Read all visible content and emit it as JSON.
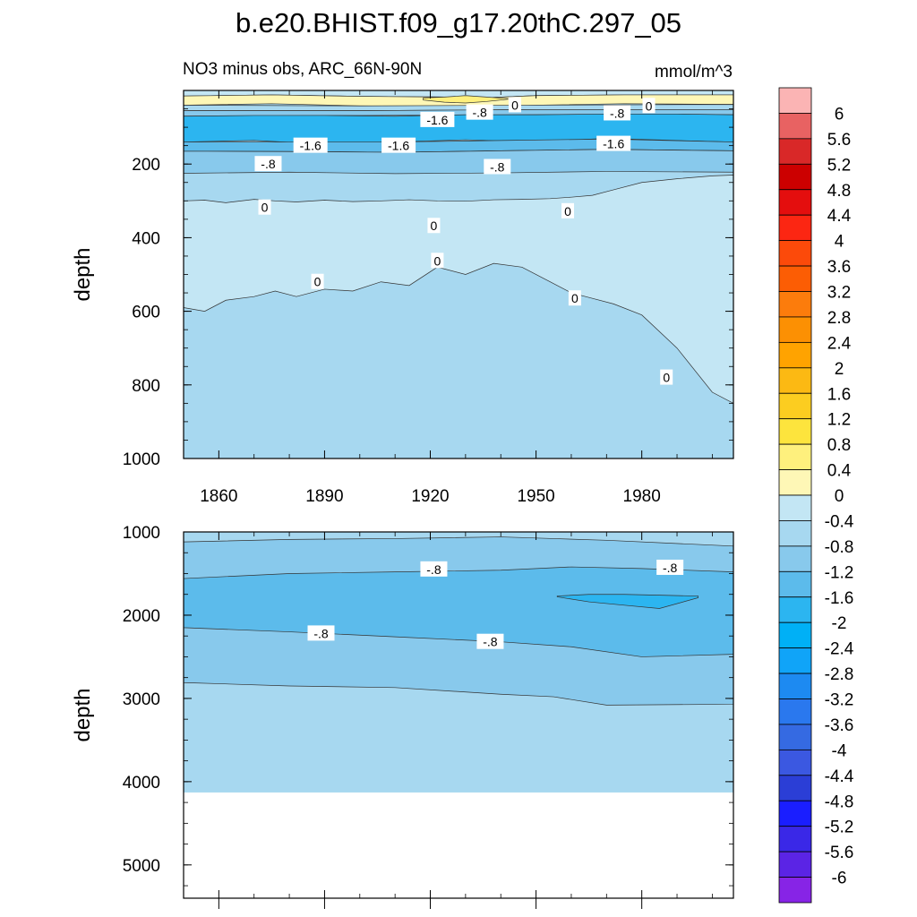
{
  "figure": {
    "title": "b.e20.BHIST.f09_g17.20thC.297_05",
    "subtitle_left": "NO3 minus obs, ARC_66N-90N",
    "subtitle_right": "mmol/m^3"
  },
  "chart_data": [
    {
      "type": "heatmap",
      "panel": "upper",
      "ylabel": "depth",
      "xlim": [
        1850,
        2006
      ],
      "ylim": [
        1000,
        0
      ],
      "y_reversed": true,
      "x_ticks": [
        1860,
        1890,
        1920,
        1950,
        1980
      ],
      "y_ticks": [
        200,
        400,
        600,
        800,
        1000
      ],
      "fill_default_level": -0.4,
      "regions": [
        {
          "level": 0.0,
          "kind": "band",
          "x": [
            1850,
            1856,
            1862,
            1870,
            1876,
            1882,
            1890,
            1898,
            1906,
            1914,
            1922,
            1930,
            1938,
            1946,
            1954,
            1960,
            1966,
            1972,
            1980,
            1990,
            2000,
            2006
          ],
          "top": [
            300,
            298,
            305,
            296,
            300,
            303,
            298,
            302,
            300,
            297,
            300,
            301,
            297,
            296,
            294,
            290,
            285,
            270,
            250,
            240,
            232,
            230
          ],
          "bottom": [
            590,
            600,
            570,
            560,
            545,
            560,
            540,
            545,
            520,
            530,
            480,
            500,
            470,
            480,
            520,
            550,
            565,
            580,
            610,
            700,
            820,
            850
          ]
        },
        {
          "level": 0.0,
          "kind": "band",
          "x": [
            1850,
            1875,
            1900,
            1925,
            1930,
            1950,
            1975,
            2006
          ],
          "top": [
            0,
            0,
            0,
            0,
            0,
            0,
            0,
            0
          ],
          "bottom": [
            15,
            12,
            16,
            18,
            22,
            14,
            12,
            12
          ]
        },
        {
          "level": 0.4,
          "kind": "band",
          "x": [
            1850,
            1875,
            1900,
            1925,
            1930,
            1950,
            1975,
            2006
          ],
          "top": [
            15,
            12,
            16,
            18,
            22,
            14,
            12,
            12
          ],
          "bottom": [
            40,
            36,
            42,
            44,
            48,
            40,
            36,
            38
          ]
        },
        {
          "level": 0.8,
          "kind": "band",
          "x": [
            1918,
            1924,
            1930,
            1936,
            1942
          ],
          "top": [
            20,
            18,
            14,
            18,
            22
          ],
          "bottom": [
            26,
            32,
            34,
            30,
            24
          ]
        },
        {
          "level": -0.4,
          "kind": "band",
          "x": [
            1850,
            1900,
            1950,
            2006
          ],
          "top": [
            40,
            42,
            40,
            38
          ],
          "bottom": [
            55,
            55,
            52,
            52
          ]
        },
        {
          "level": -0.8,
          "kind": "band",
          "x": [
            1850,
            1900,
            1950,
            2006
          ],
          "top": [
            55,
            55,
            52,
            52
          ],
          "bottom": [
            70,
            68,
            66,
            66
          ]
        },
        {
          "level": -1.6,
          "kind": "band",
          "x": [
            1850,
            1870,
            1890,
            1910,
            1930,
            1950,
            1970,
            1990,
            2006
          ],
          "top": [
            70,
            68,
            68,
            70,
            66,
            66,
            64,
            64,
            66
          ],
          "bottom": [
            140,
            136,
            146,
            140,
            134,
            140,
            130,
            136,
            140
          ]
        },
        {
          "level": -1.2,
          "kind": "band",
          "x": [
            1850,
            1880,
            1910,
            1940,
            1970,
            2006
          ],
          "top": [
            140,
            140,
            140,
            136,
            132,
            140
          ],
          "bottom": [
            165,
            166,
            168,
            164,
            160,
            164
          ]
        },
        {
          "level": -0.8,
          "kind": "band",
          "x": [
            1850,
            1880,
            1910,
            1940,
            1970,
            2006
          ],
          "top": [
            165,
            166,
            168,
            164,
            160,
            164
          ],
          "bottom": [
            225,
            222,
            226,
            224,
            220,
            222
          ]
        }
      ],
      "contour_labels": [
        {
          "text": "0",
          "x": 1944,
          "y": 40
        },
        {
          "text": "0",
          "x": 1982,
          "y": 42
        },
        {
          "text": "-.8",
          "x": 1934,
          "y": 60
        },
        {
          "text": "-.8",
          "x": 1973,
          "y": 62
        },
        {
          "text": "-1.6",
          "x": 1922,
          "y": 80
        },
        {
          "text": "-1.6",
          "x": 1886,
          "y": 150
        },
        {
          "text": "-1.6",
          "x": 1911,
          "y": 150
        },
        {
          "text": "-1.6",
          "x": 1972,
          "y": 145
        },
        {
          "text": "-.8",
          "x": 1874,
          "y": 200
        },
        {
          "text": "-.8",
          "x": 1939,
          "y": 208
        },
        {
          "text": "0",
          "x": 1873,
          "y": 318
        },
        {
          "text": "0",
          "x": 1921,
          "y": 368
        },
        {
          "text": "0",
          "x": 1959,
          "y": 328
        },
        {
          "text": "0",
          "x": 1922,
          "y": 463
        },
        {
          "text": "0",
          "x": 1888,
          "y": 520
        },
        {
          "text": "0",
          "x": 1961,
          "y": 565
        },
        {
          "text": "0",
          "x": 1987,
          "y": 780
        }
      ]
    },
    {
      "type": "heatmap",
      "panel": "lower",
      "ylabel": "depth",
      "xlim": [
        1850,
        2006
      ],
      "ylim": [
        5400,
        1000
      ],
      "y_reversed": true,
      "y_ticks": [
        1000,
        2000,
        3000,
        4000,
        5000
      ],
      "data_bottom_depth": 4130,
      "fill_default_level": -0.4,
      "regions": [
        {
          "level": -0.8,
          "kind": "band",
          "x": [
            1850,
            1880,
            1910,
            1940,
            1955,
            1970,
            2006
          ],
          "top": [
            1120,
            1090,
            1080,
            1060,
            1080,
            1100,
            1170
          ],
          "bottom": [
            2810,
            2850,
            2870,
            2950,
            2980,
            3080,
            3070
          ]
        },
        {
          "level": -1.2,
          "kind": "band",
          "x": [
            1850,
            1880,
            1910,
            1940,
            1960,
            1980,
            2006
          ],
          "top": [
            1560,
            1500,
            1480,
            1460,
            1420,
            1440,
            1480
          ],
          "bottom": [
            2150,
            2200,
            2260,
            2320,
            2380,
            2500,
            2470
          ]
        },
        {
          "level": -1.6,
          "kind": "band",
          "x": [
            1956,
            1965,
            1975,
            1985,
            1996
          ],
          "top": [
            1770,
            1750,
            1750,
            1760,
            1770
          ],
          "bottom": [
            1780,
            1840,
            1880,
            1920,
            1790
          ]
        }
      ],
      "contour_labels": [
        {
          "text": "-.8",
          "x": 1921,
          "y": 1450
        },
        {
          "text": "-.8",
          "x": 1988,
          "y": 1430
        },
        {
          "text": "-.8",
          "x": 1889,
          "y": 2220
        },
        {
          "text": "-.8",
          "x": 1937,
          "y": 2320
        }
      ]
    }
  ],
  "colorbar": {
    "levels": [
      "6",
      "5.6",
      "5.2",
      "4.8",
      "4.4",
      "4",
      "3.6",
      "3.2",
      "2.8",
      "2.4",
      "2",
      "1.6",
      "1.2",
      "0.8",
      "0.4",
      "0",
      "-0.4",
      "-0.8",
      "-1.2",
      "-1.6",
      "-2",
      "-2.4",
      "-2.8",
      "-3.2",
      "-3.6",
      "-4",
      "-4.4",
      "-4.8",
      "-5.2",
      "-5.6",
      "-6"
    ],
    "colors": [
      "#fbb4b4",
      "#e86262",
      "#d92828",
      "#cc0000",
      "#e40e0e",
      "#fc2612",
      "#fc4a0a",
      "#fc5d04",
      "#fc7c0c",
      "#fc9003",
      "#ffa300",
      "#fcb913",
      "#fccd20",
      "#fde43d",
      "#fef07d",
      "#fef7b6",
      "#c3e6f4",
      "#a7d8f0",
      "#88c9ec",
      "#5cbbeb",
      "#2cb5f0",
      "#00b0f6",
      "#10a4f8",
      "#1d8af1",
      "#2a78ee",
      "#356ae2",
      "#3b58e1",
      "#2b3ed6",
      "#1a1eff",
      "#3a28e7",
      "#5b24e5",
      "#8724e6"
    ]
  }
}
